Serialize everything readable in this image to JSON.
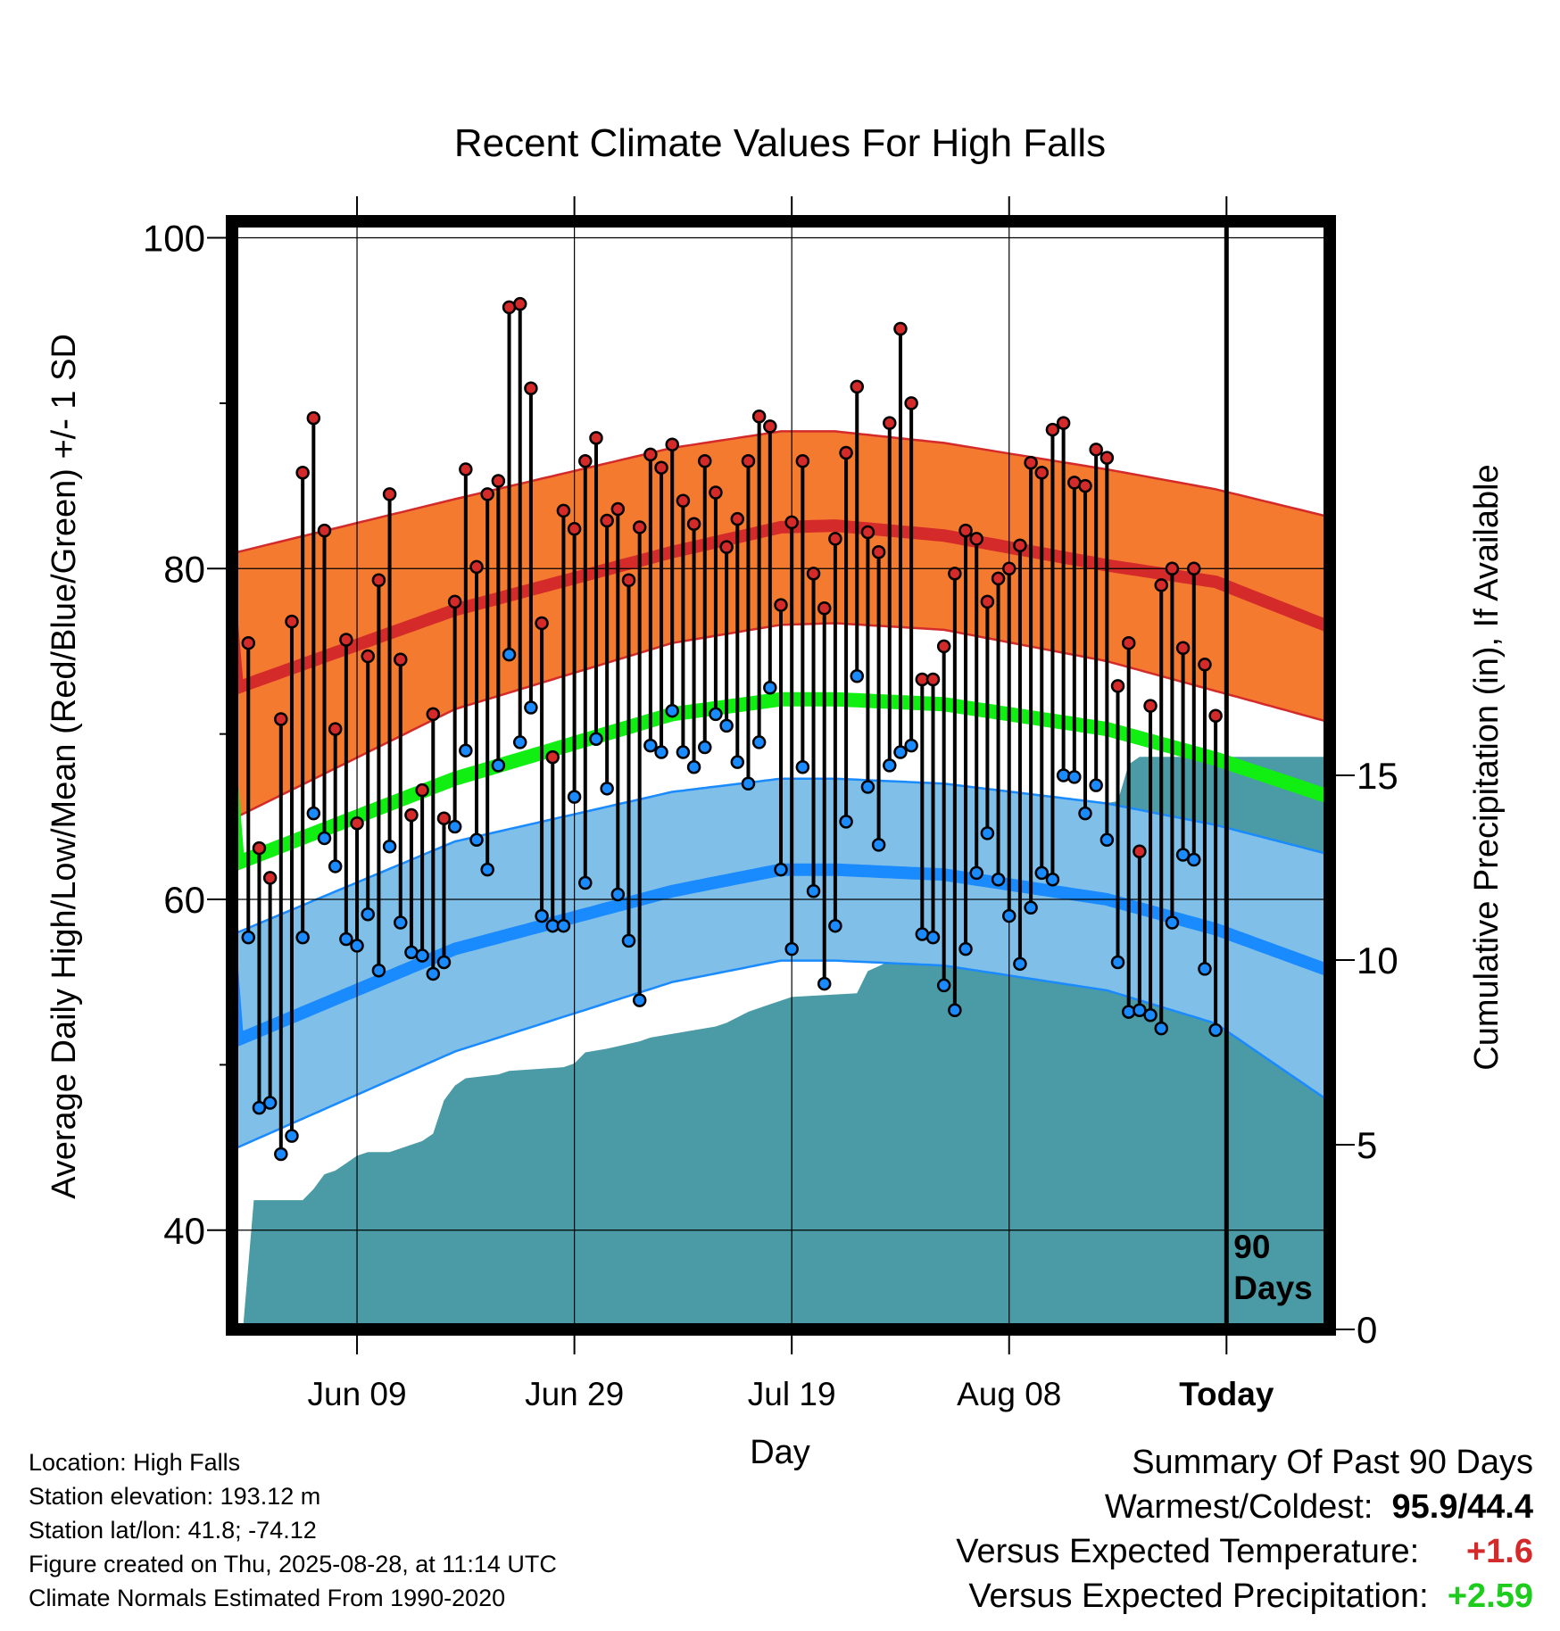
{
  "chart_data": {
    "type": "line",
    "title": "Recent Climate Values For High Falls",
    "xlabel": "Day",
    "ylabel": "Average Daily High/Low/Mean (Red/Blue/Green) +/- 1 SD",
    "y2label": "Cumulative Precipitation (in), If Available",
    "x_tick_labels": [
      "Jun 09",
      "Jun 29",
      "Jul 19",
      "Aug 08",
      "Today"
    ],
    "x_tick_days": [
      11,
      31,
      51,
      71,
      91
    ],
    "y_ticks": [
      40,
      60,
      80,
      100
    ],
    "y2_ticks": [
      0,
      5,
      10,
      15
    ],
    "ylim": [
      34,
      101
    ],
    "y2lim": [
      0,
      30
    ],
    "xlim": [
      -0.5,
      100.5
    ],
    "today_label": "90\nDays",
    "today_day": 91,
    "normals": {
      "high_mean": [
        [
          0,
          72.8
        ],
        [
          20,
          77.5
        ],
        [
          40,
          81
        ],
        [
          50,
          82.5
        ],
        [
          55,
          82.6
        ],
        [
          65,
          82
        ],
        [
          80,
          80.2
        ],
        [
          90,
          79.2
        ],
        [
          100,
          76.6
        ]
      ],
      "high_upper": [
        [
          0,
          81
        ],
        [
          20,
          84.2
        ],
        [
          40,
          87.3
        ],
        [
          50,
          88.3
        ],
        [
          55,
          88.3
        ],
        [
          65,
          87.6
        ],
        [
          80,
          86
        ],
        [
          90,
          84.8
        ],
        [
          100,
          83.2
        ]
      ],
      "high_lower": [
        [
          0,
          65
        ],
        [
          20,
          71.5
        ],
        [
          40,
          75.5
        ],
        [
          50,
          76.6
        ],
        [
          55,
          76.7
        ],
        [
          65,
          76.3
        ],
        [
          80,
          74.4
        ],
        [
          90,
          72.6
        ],
        [
          100,
          70.8
        ]
      ],
      "mean": [
        [
          0,
          62.2
        ],
        [
          20,
          67.3
        ],
        [
          40,
          71.2
        ],
        [
          50,
          72.1
        ],
        [
          55,
          72.1
        ],
        [
          65,
          71.8
        ],
        [
          80,
          70.3
        ],
        [
          90,
          68.5
        ],
        [
          100,
          66.3
        ]
      ],
      "low_mean": [
        [
          0,
          51.5
        ],
        [
          20,
          57
        ],
        [
          40,
          60.5
        ],
        [
          50,
          61.8
        ],
        [
          55,
          61.8
        ],
        [
          65,
          61.5
        ],
        [
          80,
          60
        ],
        [
          90,
          58.2
        ],
        [
          100,
          55.8
        ]
      ],
      "low_upper": [
        [
          0,
          58
        ],
        [
          20,
          63.5
        ],
        [
          40,
          66.5
        ],
        [
          50,
          67.3
        ],
        [
          55,
          67.3
        ],
        [
          65,
          67
        ],
        [
          80,
          65.8
        ],
        [
          90,
          64.5
        ],
        [
          100,
          62.8
        ]
      ],
      "low_lower": [
        [
          0,
          45
        ],
        [
          20,
          50.8
        ],
        [
          40,
          55
        ],
        [
          50,
          56.3
        ],
        [
          55,
          56.3
        ],
        [
          65,
          56
        ],
        [
          80,
          54.5
        ],
        [
          90,
          52.5
        ],
        [
          100,
          48
        ]
      ]
    },
    "highs": [
      75.5,
      63.1,
      61.3,
      70.9,
      76.8,
      85.8,
      89.1,
      82.3,
      70.3,
      75.7,
      64.6,
      74.7,
      79.3,
      84.5,
      74.5,
      65.1,
      66.6,
      71.2,
      64.9,
      78,
      86,
      80.1,
      84.5,
      85.3,
      95.8,
      96,
      90.9,
      76.7,
      68.6,
      83.5,
      82.4,
      86.5,
      87.9,
      82.9,
      83.6,
      79.3,
      82.5,
      86.9,
      86.1,
      87.5,
      84.1,
      82.7,
      86.5,
      84.6,
      81.3,
      83,
      86.5,
      89.2,
      88.6,
      77.8,
      82.8,
      86.5,
      79.7,
      77.6,
      81.8,
      87,
      91,
      82.2,
      81,
      88.8,
      94.5,
      90,
      73.3,
      73.3,
      75.3,
      79.7,
      82.3,
      81.8,
      78,
      79.4,
      80,
      81.4,
      86.4,
      85.8,
      88.4,
      88.8,
      85.2,
      85,
      87.2,
      86.7,
      72.9,
      75.5,
      62.9,
      71.7,
      79,
      80,
      75.2,
      80,
      74.2,
      71.1
    ],
    "lows": [
      57.7,
      47.4,
      47.7,
      44.6,
      45.7,
      57.7,
      65.2,
      63.7,
      62,
      57.6,
      57.2,
      59.1,
      55.7,
      63.2,
      58.6,
      56.8,
      56.6,
      55.5,
      56.2,
      64.4,
      69,
      63.6,
      61.8,
      68.1,
      74.8,
      69.5,
      71.6,
      59,
      58.4,
      58.4,
      66.2,
      61,
      69.7,
      66.7,
      60.3,
      57.5,
      53.9,
      69.3,
      68.9,
      71.4,
      68.9,
      68,
      69.2,
      71.2,
      70.5,
      68.3,
      67,
      69.5,
      72.8,
      61.8,
      57,
      68,
      60.5,
      54.9,
      58.4,
      64.7,
      73.5,
      66.8,
      63.3,
      68.1,
      68.9,
      69.3,
      57.9,
      57.7,
      54.8,
      53.3,
      57,
      61.6,
      64,
      61.2,
      59,
      56.1,
      59.5,
      61.6,
      61.2,
      67.5,
      67.4,
      65.2,
      66.9,
      63.6,
      56.2,
      53.2,
      53.3,
      53,
      52.2,
      58.6,
      62.7,
      62.4,
      55.8,
      52.1
    ],
    "precip_cum": [
      [
        0,
        0
      ],
      [
        0.5,
        0
      ],
      [
        1.5,
        3.5
      ],
      [
        6,
        3.5
      ],
      [
        7,
        3.8
      ],
      [
        8,
        4.2
      ],
      [
        9,
        4.3
      ],
      [
        10,
        4.5
      ],
      [
        11,
        4.7
      ],
      [
        12,
        4.8
      ],
      [
        14,
        4.8
      ],
      [
        15,
        4.9
      ],
      [
        16,
        5
      ],
      [
        17,
        5.1
      ],
      [
        18,
        5.3
      ],
      [
        19,
        6.2
      ],
      [
        20,
        6.6
      ],
      [
        21,
        6.8
      ],
      [
        24,
        6.9
      ],
      [
        25,
        7
      ],
      [
        30,
        7.1
      ],
      [
        31,
        7.2
      ],
      [
        32,
        7.5
      ],
      [
        34,
        7.6
      ],
      [
        37,
        7.8
      ],
      [
        38,
        7.9
      ],
      [
        40,
        8
      ],
      [
        44,
        8.2
      ],
      [
        45,
        8.3
      ],
      [
        47,
        8.6
      ],
      [
        48,
        8.7
      ],
      [
        51,
        9
      ],
      [
        57,
        9.1
      ],
      [
        58,
        9.7
      ],
      [
        61,
        10.1
      ],
      [
        62,
        10.1
      ],
      [
        62.5,
        13.3
      ],
      [
        63,
        13.5
      ],
      [
        72,
        13.7
      ],
      [
        77,
        14
      ],
      [
        79,
        14.2
      ],
      [
        81,
        14.3
      ],
      [
        82,
        15.3
      ],
      [
        83,
        15.5
      ],
      [
        90,
        15.5
      ],
      [
        100,
        15.5
      ]
    ]
  },
  "info": {
    "location": "Location: High Falls",
    "elevation": "Station elevation: 193.12 m",
    "latlon": "Station lat/lon: 41.8; -74.12",
    "created": "Figure created on Thu, 2025-08-28, at 11:14 UTC",
    "normals": "Climate Normals Estimated From 1990-2020"
  },
  "summary": {
    "title": "Summary Of Past 90 Days",
    "warmest_label": "Warmest/Coldest:",
    "warmest_value": "95.9/44.4",
    "temp_label": "Versus Expected Temperature:",
    "temp_value": "+1.6",
    "precip_label": "Versus Expected Precipitation:",
    "precip_value": "+2.59"
  },
  "colors": {
    "high_band": "#f47a30",
    "high_line": "#d42a2a",
    "mean_line": "#11ee11",
    "low_band": "#7fbfe8",
    "low_line": "#1a8aff",
    "precip": "#4a9ba5",
    "temp_delta": "#d42a2a",
    "precip_delta": "#1dcc1d"
  }
}
